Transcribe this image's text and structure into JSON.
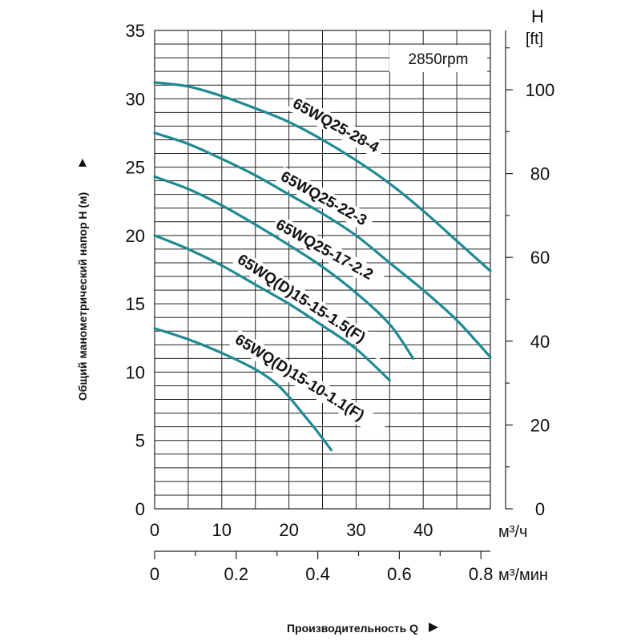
{
  "chart_data": {
    "type": "line",
    "title": "",
    "annotation": "2850rpm",
    "xlabel": "Производительность Q",
    "ylabel": "Общий манометрический напор H (м)",
    "x_units": [
      "м³/ч",
      "м³/мин"
    ],
    "right_axis_title": [
      "H",
      "[ft]"
    ],
    "xlim": [
      0,
      50
    ],
    "ylim": [
      0,
      35
    ],
    "x_ticks": [
      "0",
      "10",
      "20",
      "30",
      "40"
    ],
    "x_ticks_values": [
      0,
      10,
      20,
      30,
      40
    ],
    "x2_ticks": [
      "0",
      "0.2",
      "0.4",
      "0.6",
      "0.8"
    ],
    "x2_ticks_values": [
      0,
      0.2,
      0.4,
      0.6,
      0.8
    ],
    "y_ticks": [
      "0",
      "5",
      "10",
      "15",
      "20",
      "25",
      "30",
      "35"
    ],
    "y_ticks_values": [
      0,
      5,
      10,
      15,
      20,
      25,
      30,
      35
    ],
    "y2_ticks": [
      "0",
      "20",
      "40",
      "60",
      "80",
      "100"
    ],
    "y2_ticks_values": [
      0,
      20,
      40,
      60,
      80,
      100
    ],
    "grid": true,
    "line_color": "#1e8a94",
    "series": [
      {
        "name": "65WQ25-28-4",
        "x": [
          0,
          5,
          10,
          15,
          20,
          25,
          30,
          35,
          40,
          45,
          50
        ],
        "y": [
          31.2,
          30.9,
          30.2,
          29.3,
          28.3,
          27.0,
          25.5,
          23.8,
          21.8,
          19.6,
          17.4
        ]
      },
      {
        "name": "65WQ25-22-3",
        "x": [
          0,
          5,
          10,
          15,
          20,
          25,
          30,
          35,
          40,
          45,
          50
        ],
        "y": [
          27.5,
          26.7,
          25.6,
          24.4,
          23.0,
          21.6,
          20.0,
          18.0,
          16.0,
          13.8,
          11.1
        ]
      },
      {
        "name": "65WQ25-17-2.2",
        "x": [
          0,
          5,
          10,
          15,
          20,
          25,
          30,
          35,
          38.5
        ],
        "y": [
          24.3,
          23.4,
          22.2,
          20.8,
          19.3,
          17.7,
          15.8,
          13.5,
          11.0
        ]
      },
      {
        "name": "65WQ(D)15-15-1.5(F)",
        "x": [
          0,
          5,
          10,
          15,
          20,
          25,
          30,
          35
        ],
        "y": [
          20.0,
          19.0,
          17.8,
          16.4,
          15.0,
          13.4,
          11.7,
          9.4
        ]
      },
      {
        "name": "65WQ(D)15-10-1.1(F)",
        "x": [
          0,
          5,
          10,
          15,
          18,
          20,
          22,
          24,
          26.3
        ],
        "y": [
          13.2,
          12.4,
          11.4,
          10.2,
          9.2,
          8.2,
          7.0,
          5.8,
          4.3
        ]
      }
    ]
  }
}
